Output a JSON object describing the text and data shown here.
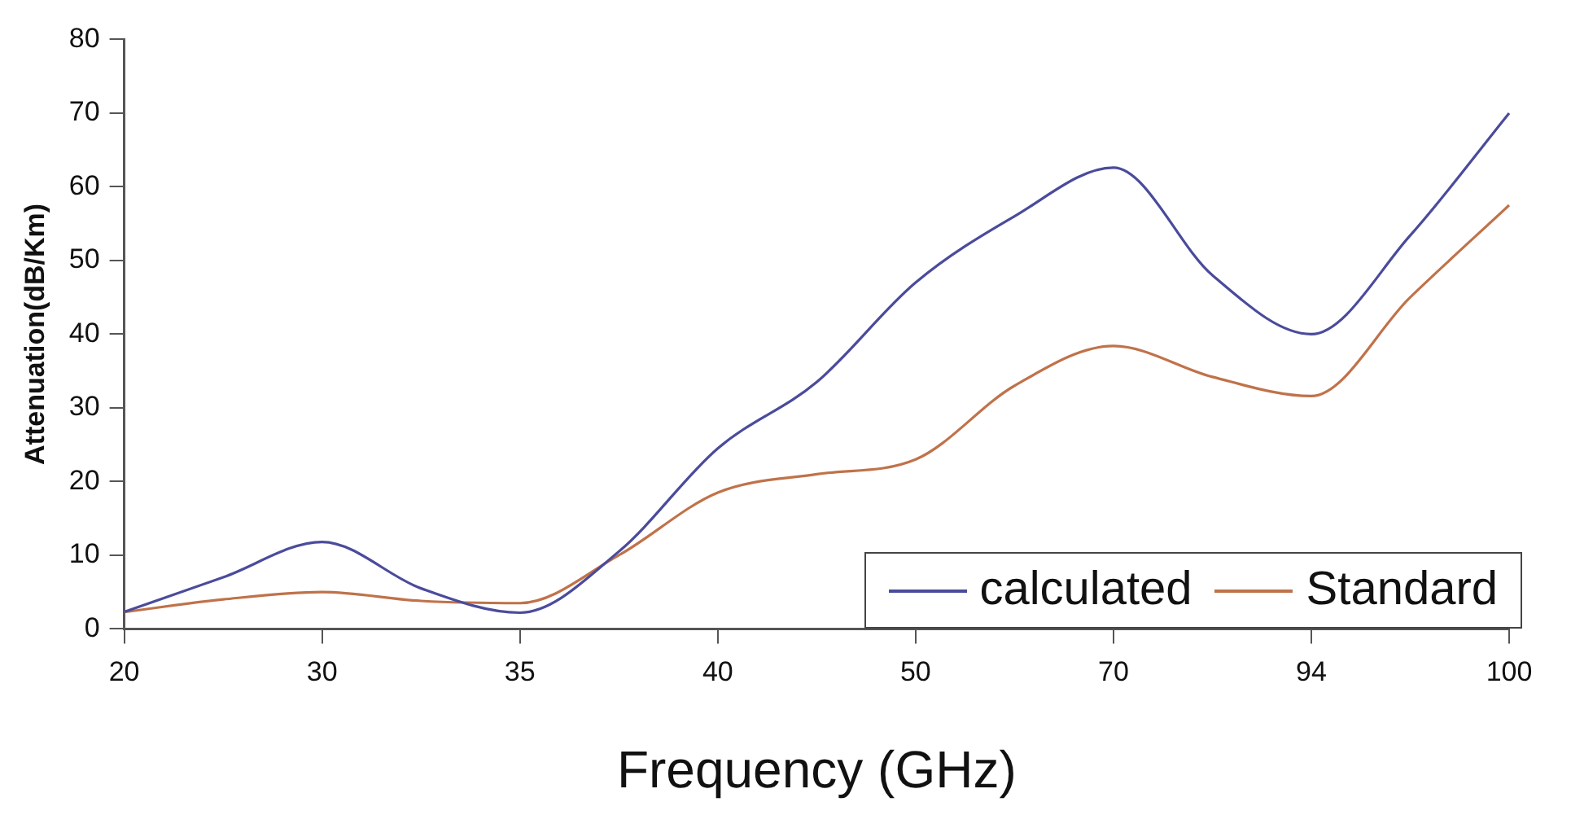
{
  "chart_data": {
    "type": "line",
    "xlabel": "Frequency (GHz)",
    "ylabel": "Attenuation(dB/Km)",
    "categories": [
      "20",
      null,
      "30",
      null,
      "35",
      null,
      "40",
      null,
      "50",
      null,
      "70",
      null,
      "94",
      null,
      "100"
    ],
    "series": [
      {
        "name": "calculated",
        "color": "#4b4b9c",
        "values": [
          2.3,
          7,
          11.8,
          5.5,
          2.2,
          10.5,
          24.5,
          33.5,
          47,
          56,
          62.6,
          48,
          40,
          53.4,
          70
        ]
      },
      {
        "name": "Standard",
        "color": "#c0724a",
        "values": [
          2.3,
          4,
          5,
          3.8,
          3.5,
          10,
          18.5,
          21,
          23,
          33,
          38.4,
          34.2,
          31.6,
          45,
          57.5
        ]
      }
    ],
    "ylim": [
      0,
      80
    ],
    "yticks": [
      0,
      10,
      20,
      30,
      40,
      50,
      60,
      70,
      80
    ],
    "grid": false,
    "legend": "bottom right",
    "marker": "none",
    "line_style": "solid"
  }
}
